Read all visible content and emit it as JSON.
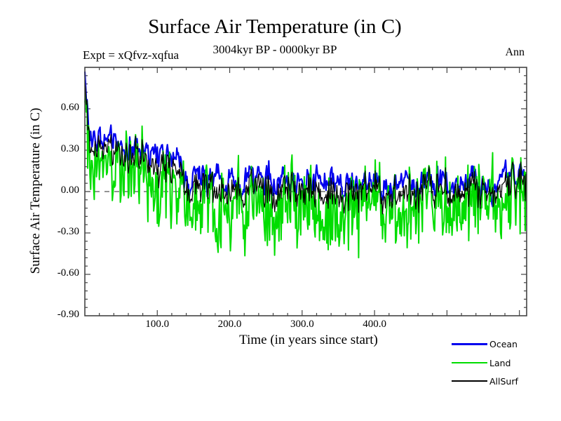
{
  "header": {
    "title": "Surface Air Temperature (in C)",
    "subtitle": "3004kyr BP - 0000kyr BP",
    "experiment": "Expt = xQfvz-xqfua",
    "period": "Ann"
  },
  "axes": {
    "xlabel": "Time (in years since start)",
    "ylabel": "Surface Air Temperature (in C)",
    "x_tick_labels": [
      "100.0",
      "200.0",
      "300.0",
      "400.0"
    ],
    "y_tick_labels": [
      "0.60",
      "0.30",
      "0.00",
      "-0.30",
      "-0.60",
      "-0.90"
    ]
  },
  "legend": {
    "entries": [
      {
        "label": "Ocean",
        "color": "#0000ee",
        "thickness": 3
      },
      {
        "label": "Land",
        "color": "#00dd00",
        "thickness": 2
      },
      {
        "label": "AllSurf",
        "color": "#000000",
        "thickness": 2
      }
    ]
  },
  "chart_data": {
    "type": "line",
    "title": "Surface Air Temperature (in C)",
    "subtitle": "3004kyr BP - 0000kyr BP",
    "xlabel": "Time (in years since start)",
    "ylabel": "Surface Air Temperature (in C)",
    "xlim": [
      0,
      610
    ],
    "ylim": [
      -0.9,
      0.9
    ],
    "clamp": [
      -0.87,
      0.87
    ],
    "x_labeled_values": [
      100,
      200,
      300,
      400
    ],
    "y_labeled_values": [
      0.6,
      0.3,
      0.0,
      -0.3,
      -0.6,
      -0.9
    ],
    "x_major_step": 100,
    "x_minor_step": 20,
    "y_major_step": 0.3,
    "y_minor_step": 0.06,
    "grid": false,
    "legend_position": "bottom-right-outside",
    "frame_color": "#444444",
    "zero_line": {
      "value": 0.0,
      "style": "dashed",
      "color": "#555555"
    },
    "n_points": 610,
    "time_resolution": "annual",
    "series": [
      {
        "name": "Ocean",
        "color": "#0000ee",
        "width": 2.2,
        "seed": 20,
        "ar1": 0.72,
        "noise_ar": 0.062,
        "noise_white": 0.038,
        "spike": {
          "amp": 0.48,
          "tau": 3.5
        },
        "trend_anchors": [
          [
            0,
            0.4
          ],
          [
            30,
            0.36
          ],
          [
            55,
            0.4
          ],
          [
            75,
            0.3
          ],
          [
            95,
            0.22
          ],
          [
            125,
            0.24
          ],
          [
            140,
            0.12
          ],
          [
            170,
            0.1
          ],
          [
            210,
            0.07
          ],
          [
            255,
            0.1
          ],
          [
            290,
            0.12
          ],
          [
            330,
            0.06
          ],
          [
            370,
            0.08
          ],
          [
            420,
            0.06
          ],
          [
            470,
            0.05
          ],
          [
            520,
            0.08
          ],
          [
            560,
            0.05
          ],
          [
            609,
            0.12
          ]
        ]
      },
      {
        "name": "Land",
        "color": "#00dd00",
        "width": 2,
        "seed": 77,
        "ar1": 0.38,
        "noise_ar": 0.15,
        "noise_white": 0.2,
        "spike": {
          "amp": 0.55,
          "tau": 2.5
        },
        "trend_anchors": [
          [
            0,
            0.3
          ],
          [
            30,
            0.22
          ],
          [
            55,
            0.25
          ],
          [
            75,
            0.12
          ],
          [
            95,
            0.02
          ],
          [
            125,
            0.05
          ],
          [
            140,
            -0.12
          ],
          [
            170,
            -0.15
          ],
          [
            210,
            -0.1
          ],
          [
            255,
            -0.14
          ],
          [
            290,
            -0.08
          ],
          [
            330,
            -0.2
          ],
          [
            370,
            -0.12
          ],
          [
            420,
            -0.15
          ],
          [
            470,
            -0.1
          ],
          [
            520,
            -0.12
          ],
          [
            560,
            -0.08
          ],
          [
            609,
            0.0
          ]
        ]
      },
      {
        "name": "AllSurf",
        "color": "#000000",
        "width": 1.2,
        "derived": {
          "from": [
            "Ocean",
            "Land"
          ],
          "weights": [
            0.64,
            0.36
          ]
        }
      }
    ]
  }
}
